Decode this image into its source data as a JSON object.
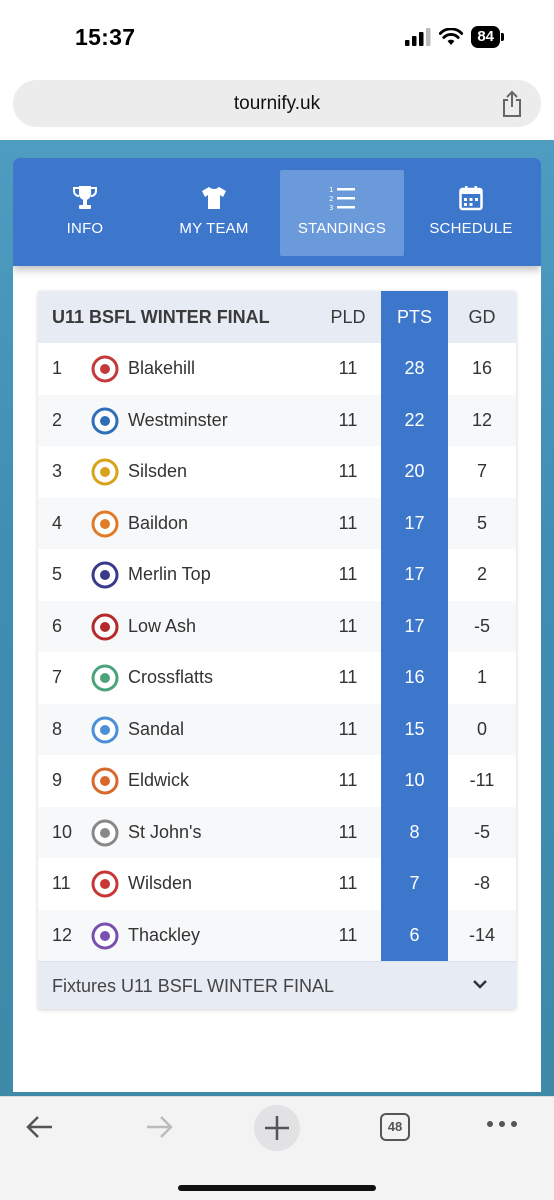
{
  "status_bar": {
    "time": "15:37",
    "battery": "84"
  },
  "browser": {
    "url": "tournify.uk",
    "tabs_count": "48"
  },
  "nav": {
    "items": [
      {
        "label": "INFO",
        "icon": "trophy-icon"
      },
      {
        "label": "MY TEAM",
        "icon": "shirt-icon"
      },
      {
        "label": "STANDINGS",
        "icon": "list-numbered-icon",
        "active": true
      },
      {
        "label": "SCHEDULE",
        "icon": "calendar-icon"
      }
    ]
  },
  "standings": {
    "title": "U11 BSFL WINTER FINAL",
    "columns": {
      "pld": "PLD",
      "pts": "PTS",
      "gd": "GD"
    },
    "rows": [
      {
        "pos": "1",
        "team": "Blakehill",
        "pld": "11",
        "pts": "28",
        "gd": "16"
      },
      {
        "pos": "2",
        "team": "Westminster",
        "pld": "11",
        "pts": "22",
        "gd": "12"
      },
      {
        "pos": "3",
        "team": "Silsden",
        "pld": "11",
        "pts": "20",
        "gd": "7"
      },
      {
        "pos": "4",
        "team": "Baildon",
        "pld": "11",
        "pts": "17",
        "gd": "5"
      },
      {
        "pos": "5",
        "team": "Merlin Top",
        "pld": "11",
        "pts": "17",
        "gd": "2"
      },
      {
        "pos": "6",
        "team": "Low Ash",
        "pld": "11",
        "pts": "17",
        "gd": "-5"
      },
      {
        "pos": "7",
        "team": "Crossflatts",
        "pld": "11",
        "pts": "16",
        "gd": "1"
      },
      {
        "pos": "8",
        "team": "Sandal",
        "pld": "11",
        "pts": "15",
        "gd": "0"
      },
      {
        "pos": "9",
        "team": "Eldwick",
        "pld": "11",
        "pts": "10",
        "gd": "-11"
      },
      {
        "pos": "10",
        "team": "St John's",
        "pld": "11",
        "pts": "8",
        "gd": "-5"
      },
      {
        "pos": "11",
        "team": "Wilsden",
        "pld": "11",
        "pts": "7",
        "gd": "-8"
      },
      {
        "pos": "12",
        "team": "Thackley",
        "pld": "11",
        "pts": "6",
        "gd": "-14"
      }
    ],
    "fixtures_label": "Fixtures U11 BSFL WINTER FINAL"
  },
  "colors": {
    "primary": "#3d77cc",
    "active_tab": "#6a9ad9",
    "header_bg": "#e6ebf4"
  }
}
